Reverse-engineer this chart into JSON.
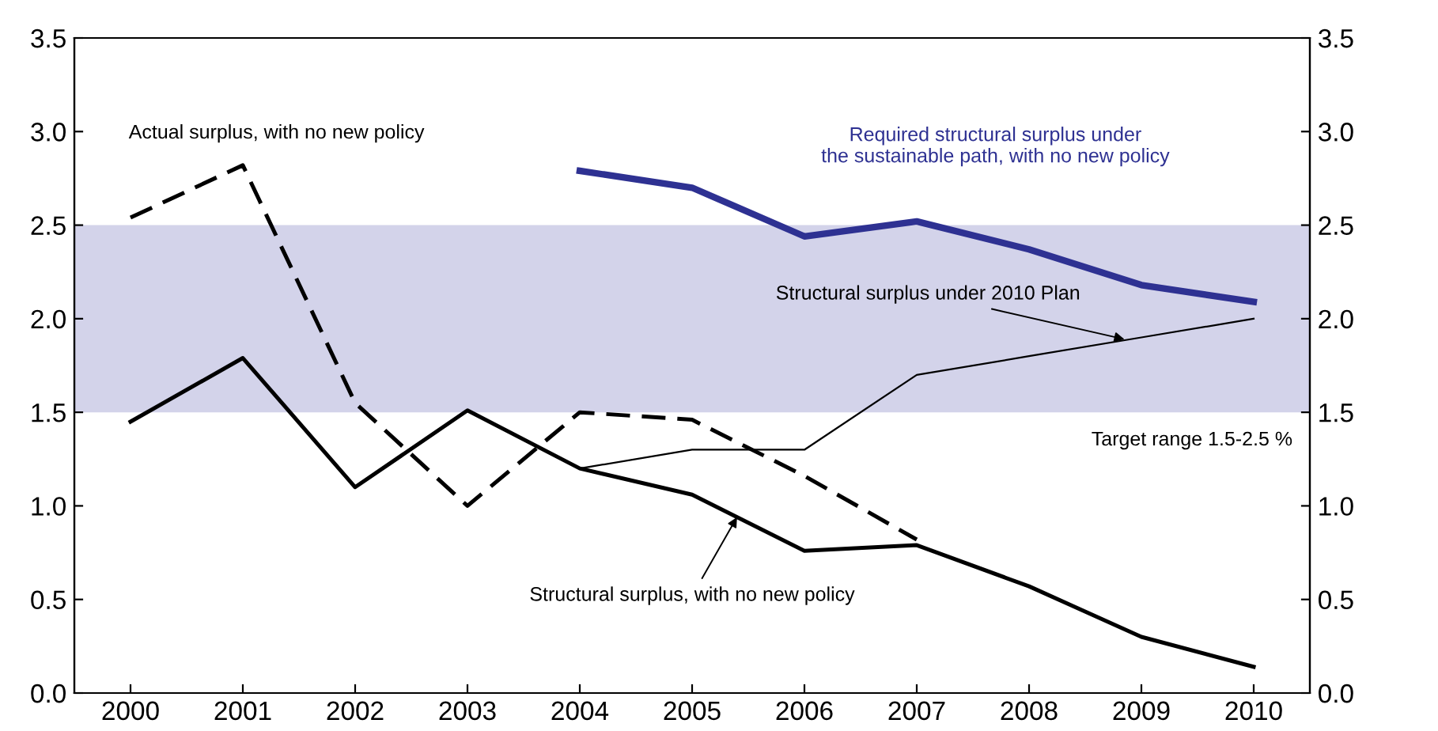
{
  "chart_data": {
    "type": "line",
    "x": [
      2000,
      2001,
      2002,
      2003,
      2004,
      2005,
      2006,
      2007,
      2008,
      2009,
      2010
    ],
    "xlim": [
      1999.5,
      2010.5
    ],
    "xticks": [
      2000,
      2001,
      2002,
      2003,
      2004,
      2005,
      2006,
      2007,
      2008,
      2009,
      2010
    ],
    "ylim": [
      0,
      3.5
    ],
    "yticks": [
      {
        "value": 0,
        "label": "0.0"
      },
      0.5,
      {
        "value": 1,
        "label": "1.0"
      },
      1.5,
      {
        "value": 2,
        "label": "2.0"
      },
      2.5,
      {
        "value": 3,
        "label": "3.0"
      },
      3.5
    ],
    "y2lim": [
      0,
      3.5
    ],
    "y2ticks": [
      {
        "value": 0,
        "label": "0.0"
      },
      0.5,
      {
        "value": 1,
        "label": "1.0"
      },
      1.5,
      {
        "value": 2,
        "label": "2.0"
      },
      2.5,
      {
        "value": 3,
        "label": "3.0"
      },
      3.5
    ],
    "grid": false,
    "legend": false,
    "marker": "none",
    "bands": [
      {
        "axis": "y",
        "from": 1.5,
        "to": 2.5,
        "label": "Target range 1.5-2.5 %",
        "color": "#d3d3ea"
      }
    ],
    "series": [
      {
        "name": "Actual surplus, with no new policy",
        "color": "#000000",
        "line_style": "dashed",
        "values": [
          2.54,
          2.82,
          1.55,
          1.0,
          1.5,
          1.46,
          1.16,
          0.82,
          null,
          null,
          null
        ]
      },
      {
        "name": "Structural surplus, with no new policy",
        "color": "#000000",
        "line_style": "solid",
        "values": [
          1.45,
          1.79,
          1.1,
          1.51,
          1.2,
          1.06,
          0.76,
          0.79,
          0.57,
          0.3,
          0.14
        ]
      },
      {
        "name": "Structural surplus under 2010 Plan",
        "color": "#000000",
        "line_style": "solid",
        "values": [
          null,
          null,
          null,
          null,
          1.2,
          1.3,
          1.3,
          1.7,
          1.8,
          1.9,
          2.0
        ]
      },
      {
        "name": "Required structural surplus under\nthe sustainable path, with no new policy",
        "color": "#2e3192",
        "line_style": "solid",
        "values": [
          null,
          null,
          null,
          null,
          2.79,
          2.7,
          2.44,
          2.52,
          2.37,
          2.18,
          2.09
        ]
      }
    ]
  }
}
